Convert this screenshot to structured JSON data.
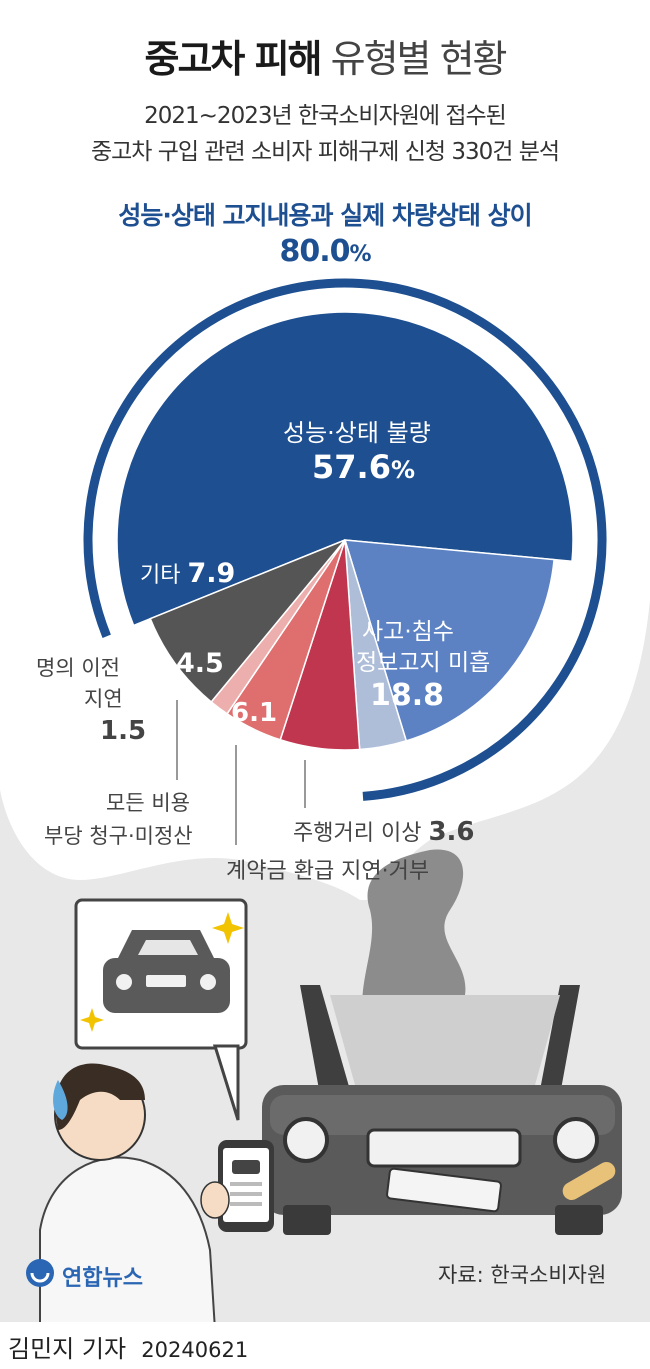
{
  "header": {
    "title_bold": "중고차 피해",
    "title_light": "유형별 현황",
    "subtitle_line1": "2021~2023년 한국소비자원에 접수된",
    "subtitle_line2": "중고차 구입 관련 소비자 피해구제 신청 330건 분석",
    "highlight_label": "성능·상태 고지내용과 실제 차량상태 상이",
    "highlight_value": "80.0",
    "highlight_unit": "%"
  },
  "chart_data": {
    "type": "pie",
    "title": "중고차 피해 유형별 현황",
    "total_cases": 330,
    "unit": "%",
    "group": {
      "label": "성능·상태 고지내용과 실제 차량상태 상이",
      "value": 80.0,
      "members": [
        "성능·상태 불량",
        "사고·침수 정보고지 미흡",
        "주행거리 이상"
      ]
    },
    "slices": [
      {
        "label": "성능·상태 불량",
        "value": 57.6,
        "color": "#1d4f91"
      },
      {
        "label": "사고·침수 정보고지 미흡",
        "value": 18.8,
        "color": "#5c82c4"
      },
      {
        "label": "주행거리 이상",
        "value": 3.6,
        "color": "#aebed9"
      },
      {
        "label": "계약금 환급 지연·거부",
        "value": 6.1,
        "color": "#c0364f"
      },
      {
        "label": "모든 비용 부당 청구·미정산",
        "value": 4.5,
        "color": "#df6f6f"
      },
      {
        "label": "명의 이전 지연",
        "value": 1.5,
        "color": "#edafad"
      },
      {
        "label": "기타",
        "value": 7.9,
        "color": "#555555"
      }
    ]
  },
  "labels": {
    "s1_line1": "성능·상태 불량",
    "s1_value": "57.6",
    "s1_unit": "%",
    "s2_line1": "사고·침수",
    "s2_line2": "정보고지 미흡",
    "s2_value": "18.8",
    "s3_label": "주행거리 이상",
    "s3_value": "3.6",
    "s4_label": "계약금 환급 지연·거부",
    "s4_value": "6.1",
    "s5_line1": "모든 비용",
    "s5_line2": "부당 청구·미정산",
    "s5_value": "4.5",
    "s6_line1": "명의 이전",
    "s6_line2": "지연",
    "s6_value": "1.5",
    "s7_label": "기타",
    "s7_value": "7.9"
  },
  "footer": {
    "source": "자료: 한국소비자원",
    "logo_text": "연합뉴스",
    "byline": "김민지 기자",
    "date": "20240621"
  },
  "colors": {
    "accent_blue": "#1d4f91",
    "smoke": "#e6e6e6",
    "smoke_dark": "#8a8a8a"
  }
}
